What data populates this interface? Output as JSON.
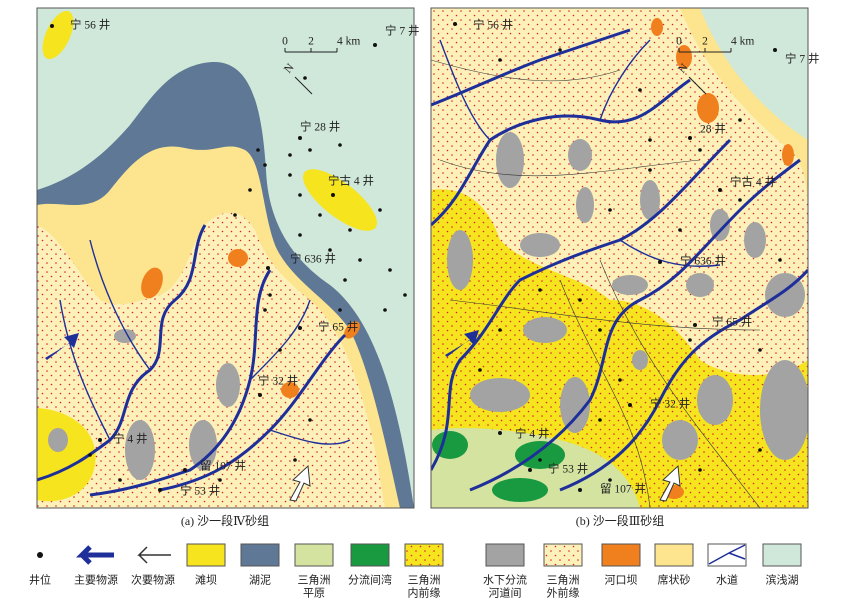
{
  "panels": [
    {
      "caption": "(a) 沙一段Ⅳ砂组",
      "north": "N",
      "scale": [
        "0",
        "2",
        "4 km"
      ],
      "wells": [
        "宁 56 井",
        "宁 7 井",
        "宁 28 井",
        "宁古 4 井",
        "宁 636 井",
        "宁 65 井",
        "宁 32 井",
        "宁 4 井",
        "留 107 井",
        "宁 53 井"
      ]
    },
    {
      "caption": "(b) 沙一段Ⅲ砂组",
      "north": "N",
      "scale": [
        "0",
        "2",
        "4 km"
      ],
      "wells": [
        "宁 56 井",
        "宁 7 井",
        "28 井",
        "宁古 4 井",
        "宁 636 井",
        "宁 65 井",
        "宁 32 井",
        "宁 4 井",
        "宁 53 井",
        "留 107 井"
      ]
    }
  ],
  "legend": [
    {
      "label": [
        "井位"
      ]
    },
    {
      "label": [
        "主要物源"
      ]
    },
    {
      "label": [
        "次要物源"
      ]
    },
    {
      "label": [
        "滩坝"
      ]
    },
    {
      "label": [
        "湖泥"
      ]
    },
    {
      "label": [
        "三角洲",
        "平原"
      ]
    },
    {
      "label": [
        "分流间湾"
      ]
    },
    {
      "label": [
        "三角洲",
        "内前缘"
      ]
    },
    {
      "label": [
        "水下分流",
        "河道间"
      ]
    },
    {
      "label": [
        "三角洲",
        "外前缘"
      ]
    },
    {
      "label": [
        "河口坝"
      ]
    },
    {
      "label": [
        "席状砂"
      ]
    },
    {
      "label": [
        "水道"
      ]
    },
    {
      "label": [
        "滨浅湖"
      ]
    }
  ]
}
